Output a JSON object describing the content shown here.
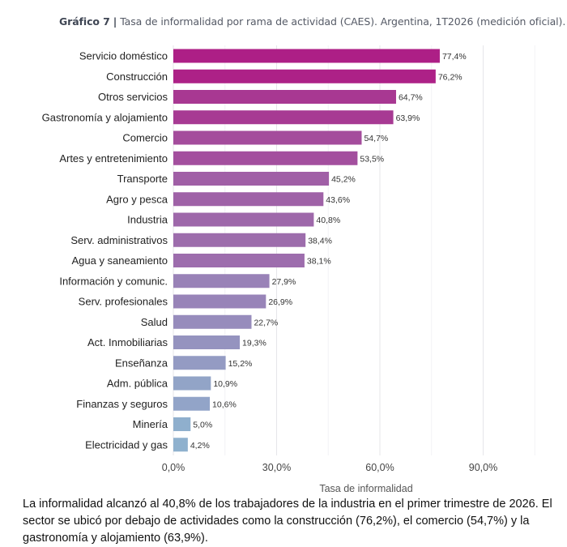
{
  "header": {
    "figure_label": "Gráfico 7",
    "separator": "|",
    "title": "Tasa de informalidad por rama de actividad (CAES). Argentina, 1T2026 (medición oficial)."
  },
  "chart_data": {
    "type": "bar",
    "orientation": "horizontal",
    "categories": [
      "Servicio doméstico",
      "Construcción",
      "Otros servicios",
      "Gastronomía y alojamiento",
      "Comercio",
      "Artes y entretenimiento",
      "Transporte",
      "Agro y pesca",
      "Industria",
      "Serv. administrativos",
      "Agua y saneamiento",
      "Información y comunic.",
      "Serv. profesionales",
      "Salud",
      "Act. Inmobiliarias",
      "Enseñanza",
      "Adm. pública",
      "Finanzas y seguros",
      "Minería",
      "Electricidad y gas"
    ],
    "values": [
      77.4,
      76.2,
      64.7,
      63.9,
      54.7,
      53.5,
      45.2,
      43.6,
      40.8,
      38.4,
      38.1,
      27.9,
      26.9,
      22.7,
      19.3,
      15.2,
      10.9,
      10.6,
      5.0,
      4.2
    ],
    "value_labels": [
      "77,4%",
      "76,2%",
      "64,7%",
      "63,9%",
      "54,7%",
      "53,5%",
      "45,2%",
      "43,6%",
      "40,8%",
      "38,4%",
      "38,1%",
      "27,9%",
      "26,9%",
      "22,7%",
      "19,3%",
      "15,2%",
      "10,9%",
      "10,6%",
      "5,0%",
      "4,2%"
    ],
    "xlabel": "Tasa de informalidad",
    "ylabel": "",
    "xlim": [
      0,
      113
    ],
    "x_ticks": [
      0,
      30,
      60,
      90
    ],
    "x_tick_labels": [
      "0,0%",
      "30,0%",
      "60,0%",
      "90,0%"
    ],
    "grid": "vertical",
    "legend": "none",
    "color_high": "#ad1f86",
    "color_low": "#8fb1ce"
  },
  "caption": "La informalidad alcanzó al 40,8% de los trabajadores de la industria en el primer trimestre de 2026. El sector se ubicó por debajo de actividades como la construcción (76,2%), el comercio (54,7%) y la gastronomía y alojamiento (63,9%)."
}
